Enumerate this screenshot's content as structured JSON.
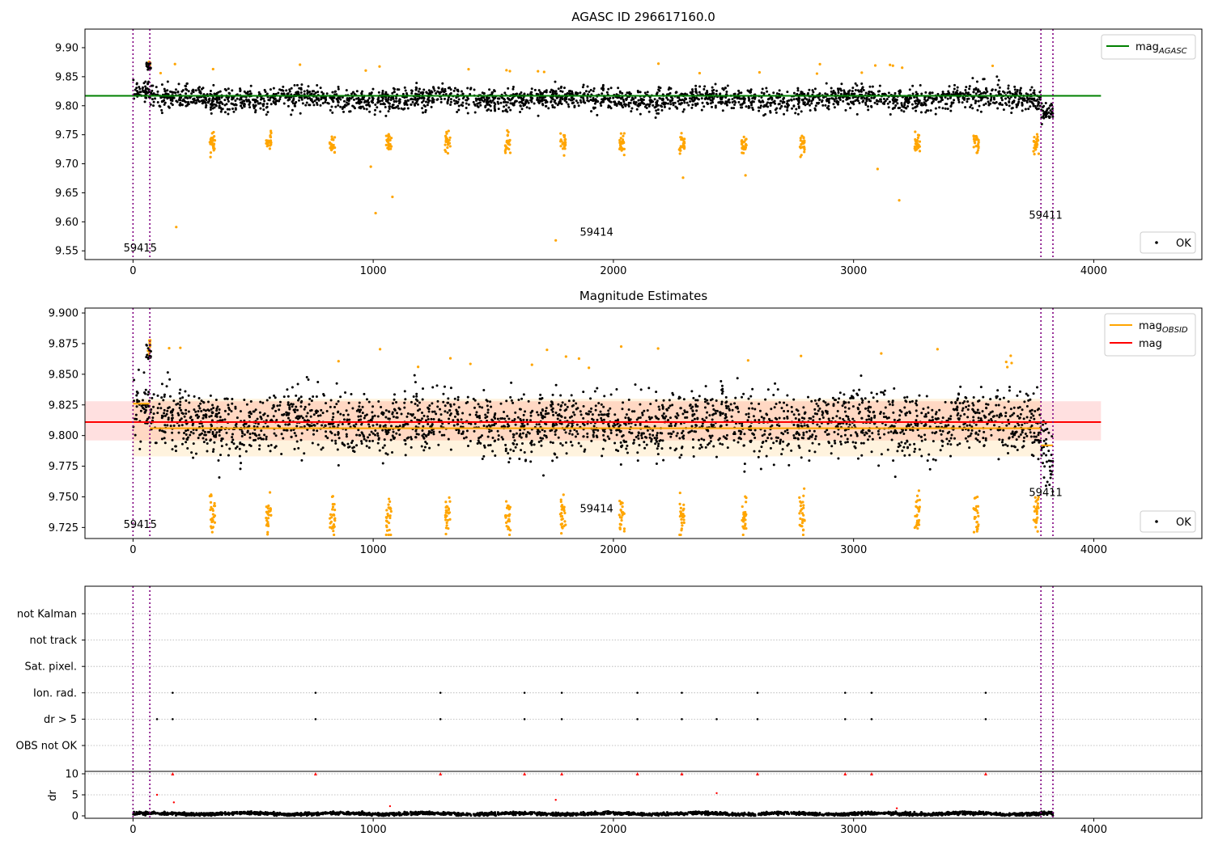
{
  "chart_data": [
    {
      "type": "scatter",
      "title": "AGASC ID 296617160.0",
      "xlim": [
        -200,
        4450
      ],
      "ylim": [
        9.535,
        9.932
      ],
      "xticks": [
        0,
        1000,
        2000,
        3000,
        4000
      ],
      "yticks": [
        9.55,
        9.6,
        9.65,
        9.7,
        9.75,
        9.8,
        9.85,
        9.9
      ],
      "ytick_labels": [
        "9.55",
        "9.60",
        "9.65",
        "9.70",
        "9.75",
        "9.80",
        "9.85",
        "9.90"
      ],
      "x_range_points": [
        0,
        3830
      ],
      "obs_boundaries": [
        0,
        70,
        3780,
        3830
      ],
      "obs_labels": [
        {
          "text": "59415",
          "x": 30,
          "y": 9.549
        },
        {
          "text": "59414",
          "x": 1930,
          "y": 9.576
        },
        {
          "text": "59411",
          "x": 3800,
          "y": 9.605
        }
      ],
      "series": [
        {
          "name": "OK",
          "color": "#000000",
          "center": 9.812,
          "spread": 0.014
        },
        {
          "name": "",
          "color": "#ffa500",
          "center": 9.735,
          "spread": 0.012,
          "outliers": [
            {
              "x": 180,
              "y": 9.591
            },
            {
              "x": 990,
              "y": 9.695
            },
            {
              "x": 1010,
              "y": 9.615
            },
            {
              "x": 1080,
              "y": 9.643
            },
            {
              "x": 1760,
              "y": 9.568
            },
            {
              "x": 2290,
              "y": 9.676
            },
            {
              "x": 2550,
              "y": 9.68
            },
            {
              "x": 3100,
              "y": 9.691
            },
            {
              "x": 3190,
              "y": 9.637
            }
          ]
        }
      ],
      "hlines": [
        {
          "name": "mag_AGASC",
          "y": 9.817,
          "color": "#008000",
          "x0": -200,
          "x1": 4030
        }
      ],
      "legend_lines": [
        {
          "label": "mag",
          "sub": "AGASC",
          "color": "#008000"
        }
      ],
      "legend_points": [
        {
          "label": "OK"
        }
      ],
      "legend_placement": [
        "top-right",
        "bottom-right"
      ],
      "grid": false
    },
    {
      "type": "scatter",
      "title": "Magnitude Estimates",
      "xlim": [
        -200,
        4450
      ],
      "ylim": [
        9.716,
        9.904
      ],
      "xticks": [
        0,
        1000,
        2000,
        3000,
        4000
      ],
      "yticks": [
        9.725,
        9.75,
        9.775,
        9.8,
        9.825,
        9.85,
        9.875,
        9.9
      ],
      "ytick_labels": [
        "9.725",
        "9.750",
        "9.775",
        "9.800",
        "9.825",
        "9.850",
        "9.875",
        "9.900"
      ],
      "obs_boundaries": [
        0,
        70,
        3780,
        3830
      ],
      "obs_labels": [
        {
          "text": "59415",
          "x": 30,
          "y": 9.7245
        },
        {
          "text": "59414",
          "x": 1930,
          "y": 9.7375
        },
        {
          "text": "59411",
          "x": 3800,
          "y": 9.7505
        }
      ],
      "bands": [
        {
          "color": "#ff0000",
          "opacity": 0.12,
          "y0": 9.796,
          "y1": 9.828,
          "x0": -200,
          "x1": 4030
        },
        {
          "color": "#ffa500",
          "opacity": 0.13,
          "y0": 9.783,
          "y1": 9.83,
          "x0": 0,
          "x1": 3780
        }
      ],
      "hlines": [
        {
          "name": "mag",
          "y": 9.811,
          "color": "#ff0000",
          "x0": -200,
          "x1": 4030
        },
        {
          "name": "mag_OBSID",
          "y": 9.826,
          "color": "#ffa500",
          "x0": 0,
          "x1": 70
        },
        {
          "name": "mag_OBSID",
          "y": 9.806,
          "color": "#ffa500",
          "x0": 70,
          "x1": 3780
        },
        {
          "name": "mag_OBSID",
          "y": 9.792,
          "color": "#ffa500",
          "x0": 3780,
          "x1": 3830
        }
      ],
      "legend_lines": [
        {
          "label": "mag",
          "sub": "OBSID",
          "color": "#ffa500"
        },
        {
          "label": "mag",
          "sub": "",
          "color": "#ff0000"
        }
      ],
      "legend_points": [
        {
          "label": "OK"
        }
      ],
      "legend_placement": [
        "top-right",
        "bottom-right"
      ],
      "grid": false
    },
    {
      "type": "scatter",
      "xlim": [
        -200,
        4450
      ],
      "xticks": [
        0,
        1000,
        2000,
        3000,
        4000
      ],
      "flag_categories": [
        "not Kalman",
        "not track",
        "Sat. pixel.",
        "Ion. rad.",
        "dr > 5",
        "OBS not OK"
      ],
      "flag_events": {
        "Ion. rad.": [
          165,
          760,
          1280,
          1630,
          1785,
          2100,
          2285,
          2600,
          2965,
          3075,
          3550
        ],
        "dr > 5": [
          100,
          165,
          760,
          1280,
          1630,
          1785,
          2100,
          2285,
          2430,
          2600,
          2965,
          3075,
          3550
        ]
      },
      "dr_ylabel": "dr",
      "dr_ylim": [
        -0.5,
        10.5
      ],
      "dr_yticks": [
        0,
        5,
        10
      ],
      "dr_ytick_labels": [
        "0",
        "5",
        "10"
      ],
      "dr_clipped_x": [
        165,
        760,
        1280,
        1630,
        1785,
        2100,
        2285,
        2600,
        2965,
        3075,
        3550
      ],
      "dr_outliers": [
        {
          "x": 100,
          "y": 5.0
        },
        {
          "x": 170,
          "y": 3.2
        },
        {
          "x": 1070,
          "y": 2.3
        },
        {
          "x": 1760,
          "y": 3.8
        },
        {
          "x": 2430,
          "y": 5.4
        },
        {
          "x": 3180,
          "y": 1.8
        }
      ],
      "obs_boundaries": [
        0,
        70,
        3780,
        3830
      ],
      "grid": "horizontal dotted"
    }
  ]
}
